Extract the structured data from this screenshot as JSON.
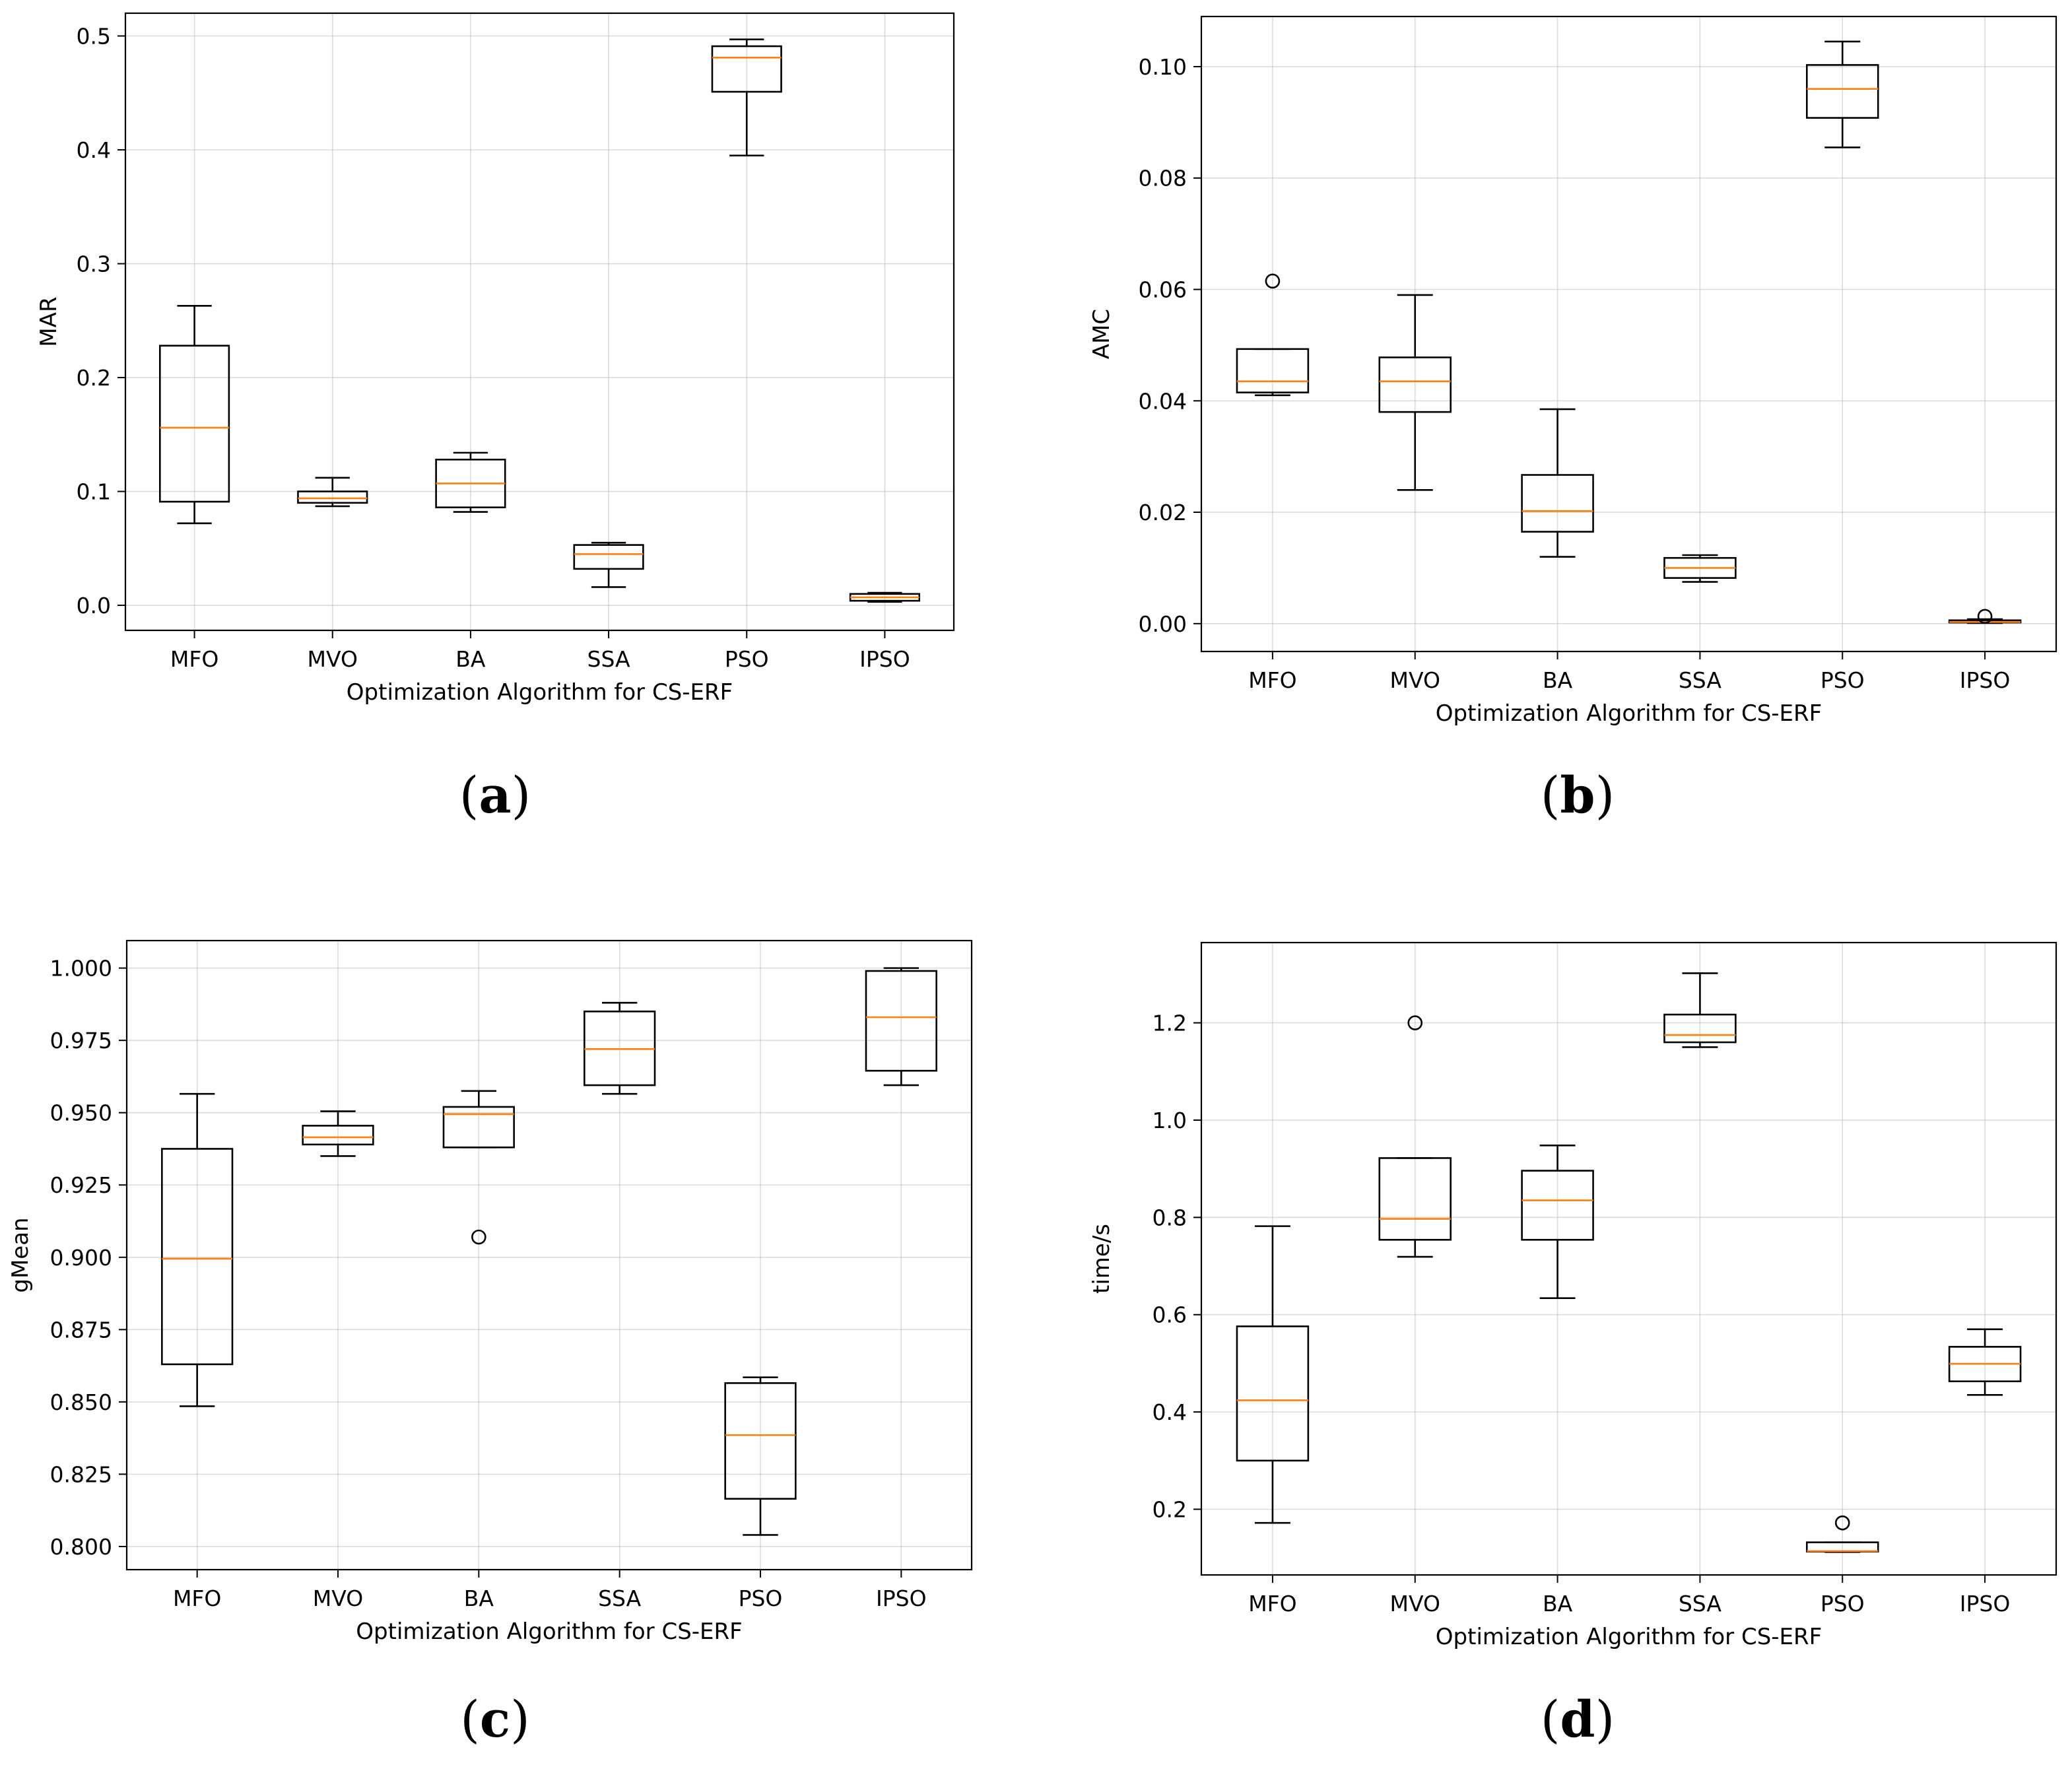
{
  "captions": {
    "a": "a",
    "b": "b",
    "c": "c",
    "d": "d"
  },
  "chart_data": [
    {
      "id": "a",
      "type": "boxplot",
      "title": "",
      "xlabel": "Optimization Algorithm for CS-ERF",
      "ylabel": "MAR",
      "categories": [
        "MFO",
        "MVO",
        "BA",
        "SSA",
        "PSO",
        "IPSO"
      ],
      "ylim": [
        -0.022,
        0.52
      ],
      "yticks": [
        0.0,
        0.1,
        0.2,
        0.3,
        0.4,
        0.5
      ],
      "ytick_labels": [
        "0.0",
        "0.1",
        "0.2",
        "0.3",
        "0.4",
        "0.5"
      ],
      "grid": true,
      "boxes": [
        {
          "whislo": 0.072,
          "q1": 0.091,
          "med": 0.156,
          "q3": 0.228,
          "whishi": 0.263,
          "fliers": []
        },
        {
          "whislo": 0.087,
          "q1": 0.09,
          "med": 0.094,
          "q3": 0.1,
          "whishi": 0.112,
          "fliers": []
        },
        {
          "whislo": 0.082,
          "q1": 0.086,
          "med": 0.107,
          "q3": 0.128,
          "whishi": 0.134,
          "fliers": []
        },
        {
          "whislo": 0.016,
          "q1": 0.032,
          "med": 0.045,
          "q3": 0.053,
          "whishi": 0.055,
          "fliers": []
        },
        {
          "whislo": 0.395,
          "q1": 0.451,
          "med": 0.481,
          "q3": 0.491,
          "whishi": 0.497,
          "fliers": []
        },
        {
          "whislo": 0.003,
          "q1": 0.004,
          "med": 0.007,
          "q3": 0.01,
          "whishi": 0.011,
          "fliers": []
        }
      ]
    },
    {
      "id": "b",
      "type": "boxplot",
      "title": "",
      "xlabel": "Optimization Algorithm for CS-ERF",
      "ylabel": "AMC",
      "categories": [
        "MFO",
        "MVO",
        "BA",
        "SSA",
        "PSO",
        "IPSO"
      ],
      "ylim": [
        -0.005,
        0.109
      ],
      "yticks": [
        0.0,
        0.02,
        0.04,
        0.06,
        0.08,
        0.1
      ],
      "ytick_labels": [
        "0.00",
        "0.02",
        "0.04",
        "0.06",
        "0.08",
        "0.10"
      ],
      "grid": true,
      "boxes": [
        {
          "whislo": 0.041,
          "q1": 0.0415,
          "med": 0.0435,
          "q3": 0.0493,
          "whishi": 0.0493,
          "fliers": [
            0.0615
          ]
        },
        {
          "whislo": 0.024,
          "q1": 0.038,
          "med": 0.0435,
          "q3": 0.0478,
          "whishi": 0.059,
          "fliers": []
        },
        {
          "whislo": 0.012,
          "q1": 0.0165,
          "med": 0.0202,
          "q3": 0.0267,
          "whishi": 0.0385,
          "fliers": []
        },
        {
          "whislo": 0.0075,
          "q1": 0.0082,
          "med": 0.01,
          "q3": 0.0118,
          "whishi": 0.0123,
          "fliers": []
        },
        {
          "whislo": 0.0855,
          "q1": 0.0908,
          "med": 0.096,
          "q3": 0.1003,
          "whishi": 0.1045,
          "fliers": []
        },
        {
          "whislo": 0.0001,
          "q1": 0.0002,
          "med": 0.0003,
          "q3": 0.0006,
          "whishi": 0.0008,
          "fliers": [
            0.0013
          ]
        }
      ]
    },
    {
      "id": "c",
      "type": "boxplot",
      "title": "",
      "xlabel": "Optimization Algorithm for CS-ERF",
      "ylabel": "gMean",
      "categories": [
        "MFO",
        "MVO",
        "BA",
        "SSA",
        "PSO",
        "IPSO"
      ],
      "ylim": [
        0.792,
        1.0095
      ],
      "yticks": [
        0.8,
        0.825,
        0.85,
        0.875,
        0.9,
        0.925,
        0.95,
        0.975,
        1.0
      ],
      "ytick_labels": [
        "0.800",
        "0.825",
        "0.850",
        "0.875",
        "0.900",
        "0.925",
        "0.950",
        "0.975",
        "1.000"
      ],
      "grid": true,
      "boxes": [
        {
          "whislo": 0.8485,
          "q1": 0.863,
          "med": 0.8995,
          "q3": 0.9375,
          "whishi": 0.9565,
          "fliers": []
        },
        {
          "whislo": 0.935,
          "q1": 0.939,
          "med": 0.9415,
          "q3": 0.9455,
          "whishi": 0.9505,
          "fliers": []
        },
        {
          "whislo": 0.938,
          "q1": 0.938,
          "med": 0.9495,
          "q3": 0.952,
          "whishi": 0.9575,
          "fliers": [
            0.907
          ]
        },
        {
          "whislo": 0.9565,
          "q1": 0.9595,
          "med": 0.972,
          "q3": 0.985,
          "whishi": 0.988,
          "fliers": []
        },
        {
          "whislo": 0.804,
          "q1": 0.8165,
          "med": 0.8385,
          "q3": 0.8565,
          "whishi": 0.8585,
          "fliers": []
        },
        {
          "whislo": 0.9595,
          "q1": 0.9645,
          "med": 0.983,
          "q3": 0.999,
          "whishi": 1.0,
          "fliers": []
        }
      ]
    },
    {
      "id": "d",
      "type": "boxplot",
      "title": "",
      "xlabel": "Optimization Algorithm for CS-ERF",
      "ylabel": "time/s",
      "categories": [
        "MFO",
        "MVO",
        "BA",
        "SSA",
        "PSO",
        "IPSO"
      ],
      "ylim": [
        0.065,
        1.365
      ],
      "yticks": [
        0.2,
        0.4,
        0.6,
        0.8,
        1.0,
        1.2
      ],
      "ytick_labels": [
        "0.2",
        "0.4",
        "0.6",
        "0.8",
        "1.0",
        "1.2"
      ],
      "grid": true,
      "boxes": [
        {
          "whislo": 0.172,
          "q1": 0.3,
          "med": 0.424,
          "q3": 0.576,
          "whishi": 0.782,
          "fliers": []
        },
        {
          "whislo": 0.719,
          "q1": 0.754,
          "med": 0.797,
          "q3": 0.922,
          "whishi": 0.922,
          "fliers": [
            1.2
          ]
        },
        {
          "whislo": 0.634,
          "q1": 0.754,
          "med": 0.835,
          "q3": 0.896,
          "whishi": 0.948,
          "fliers": []
        },
        {
          "whislo": 1.15,
          "q1": 1.16,
          "med": 1.175,
          "q3": 1.217,
          "whishi": 1.302,
          "fliers": []
        },
        {
          "whislo": 0.112,
          "q1": 0.113,
          "med": 0.114,
          "q3": 0.132,
          "whishi": 0.132,
          "fliers": [
            0.172
          ]
        },
        {
          "whislo": 0.435,
          "q1": 0.463,
          "med": 0.499,
          "q3": 0.534,
          "whishi": 0.57,
          "fliers": []
        }
      ]
    }
  ]
}
